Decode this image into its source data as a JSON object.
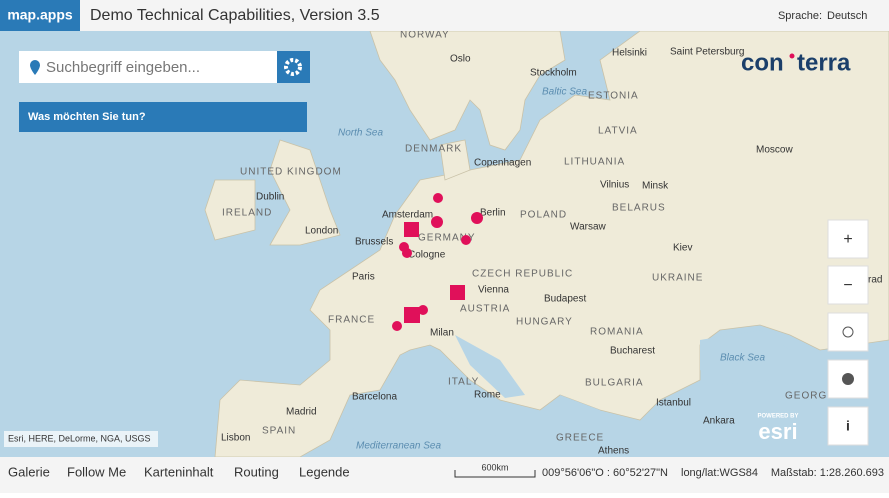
{
  "header": {
    "logo": "map.apps",
    "title": "Demo Technical Capabilities, Version 3.5",
    "language_label": "Sprache:",
    "language": "Deutsch"
  },
  "search": {
    "placeholder": "Suchbegriff eingeben..."
  },
  "menu": {
    "label": "Was möchten Sie tun?"
  },
  "brand": {
    "left": "con",
    "right": "terra"
  },
  "attribution": "Esri, HERE, DeLorme, NGA, USGS",
  "esri": {
    "powered": "POWERED BY",
    "name": "esri"
  },
  "controls": {
    "zoom_in": "+",
    "zoom_out": "−",
    "info": "i"
  },
  "map_labels": [
    "NORWAY",
    "Oslo",
    "Helsinki",
    "Saint Petersburg",
    "Stockholm",
    "Baltic Sea",
    "ESTONIA",
    "LATVIA",
    "North Sea",
    "DENMARK",
    "Copenhagen",
    "LITHUANIA",
    "Moscow",
    "Vilnius",
    "Minsk",
    "UNITED KINGDOM",
    "Dublin",
    "IRELAND",
    "Amsterdam",
    "Berlin",
    "POLAND",
    "BELARUS",
    "London",
    "Brussels",
    "GERMANY",
    "Warsaw",
    "Kiev",
    "Cologne",
    "CZECH REPUBLIC",
    "Paris",
    "UKRAINE",
    "Vienna",
    "Budapest",
    "AUSTRIA",
    "FRANCE",
    "HUNGARY",
    "Milan",
    "ROMANIA",
    "Bucharest",
    "Black Sea",
    "ITALY",
    "BULGARIA",
    "Barcelona",
    "Rome",
    "Madrid",
    "SPAIN",
    "Istanbul",
    "Lisbon",
    "Ankara",
    "Mediterranean Sea",
    "GREECE",
    "Athens",
    "rad",
    "GEORG"
  ],
  "footer": {
    "tabs": [
      "Galerie",
      "Follow Me",
      "Karteninhalt",
      "Routing",
      "Legende"
    ],
    "scale": "600km",
    "coords": "009°56'06\"O : 60°52'27\"N",
    "crs": "long/lat:WGS84",
    "ratio": "Maßstab: 1:28.260.693"
  }
}
